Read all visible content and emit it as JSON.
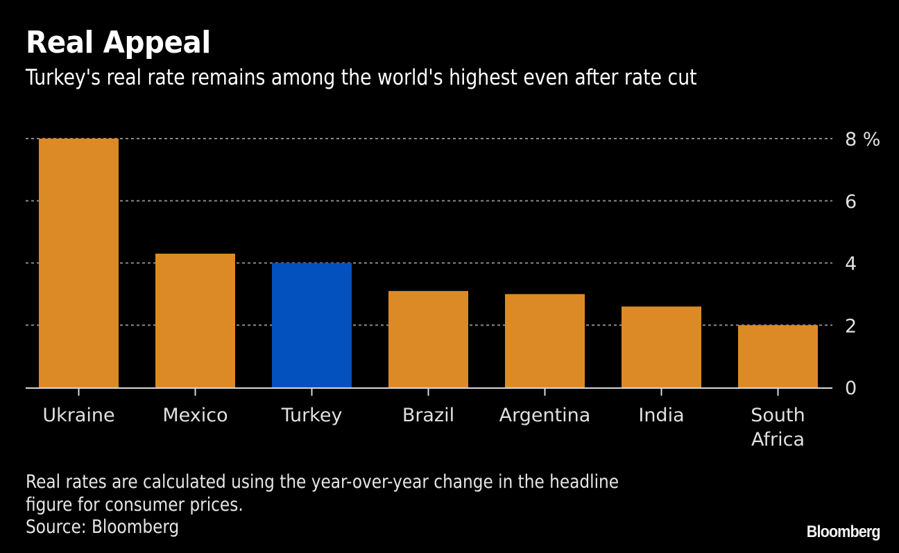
{
  "header": {
    "title": "Real Appeal",
    "subtitle": "Turkey's real rate remains among the world's highest even after rate cut"
  },
  "footer": {
    "note_line1": "Real rates are calculated using the year-over-year change in the headline",
    "note_line2": "figure for consumer prices.",
    "source": "Source: Bloomberg",
    "brand": "Bloomberg"
  },
  "colors": {
    "default_bar": "#dc8a26",
    "highlight_bar": "#0251bf",
    "background": "#000000",
    "grid": "#8a8a8a",
    "axis": "#d8d8d8"
  },
  "chart_data": {
    "type": "bar",
    "title": "Real Appeal",
    "subtitle": "Turkey's real rate remains among the world's highest even after rate cut",
    "xlabel": "",
    "ylabel": "%",
    "ylim": [
      0,
      8
    ],
    "yticks": [
      0,
      2,
      4,
      6,
      8
    ],
    "ytick_labels": [
      "0",
      "2",
      "4",
      "6",
      "8 %"
    ],
    "y_axis_side": "right",
    "grid": true,
    "categories": [
      "Ukraine",
      "Mexico",
      "Turkey",
      "Brazil",
      "Argentina",
      "India",
      "South Africa"
    ],
    "category_label_lines": [
      [
        "Ukraine"
      ],
      [
        "Mexico"
      ],
      [
        "Turkey"
      ],
      [
        "Brazil"
      ],
      [
        "Argentina"
      ],
      [
        "India"
      ],
      [
        "South",
        "Africa"
      ]
    ],
    "values": [
      8.0,
      4.3,
      4.0,
      3.1,
      3.0,
      2.6,
      2.0
    ],
    "highlight": "Turkey"
  }
}
